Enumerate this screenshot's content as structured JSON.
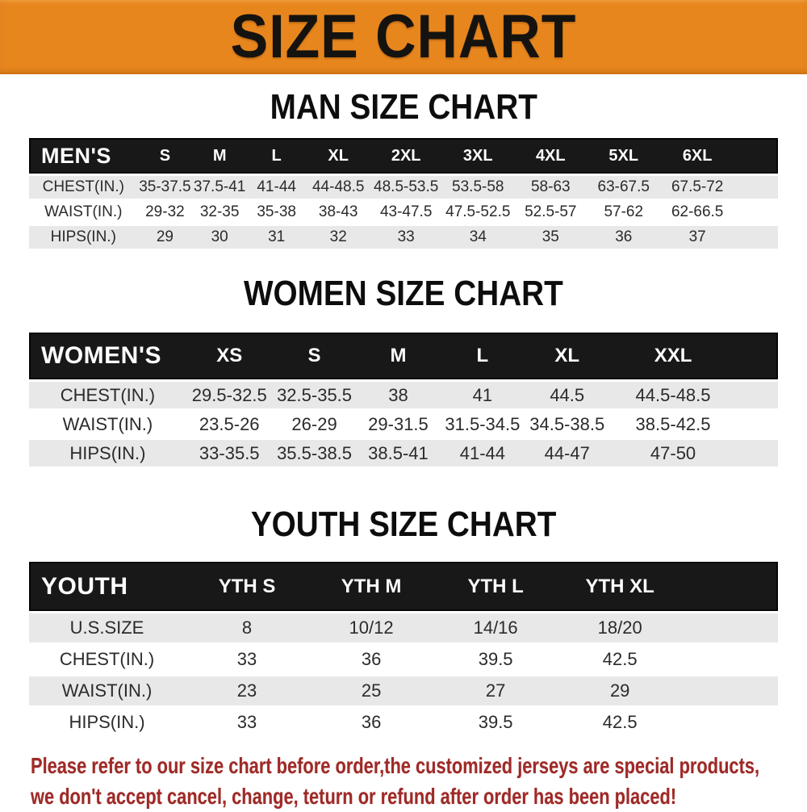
{
  "banner": {
    "title": "SIZE CHART"
  },
  "chart_data": [
    {
      "type": "table",
      "title": "MAN SIZE CHART",
      "header_label": "MEN'S",
      "columns": [
        "S",
        "M",
        "L",
        "XL",
        "2XL",
        "3XL",
        "4XL",
        "5XL",
        "6XL"
      ],
      "rows": [
        {
          "label": "CHEST(IN.)",
          "values": [
            "35-37.5",
            "37.5-41",
            "41-44",
            "44-48.5",
            "48.5-53.5",
            "53.5-58",
            "58-63",
            "63-67.5",
            "67.5-72"
          ]
        },
        {
          "label": "WAIST(IN.)",
          "values": [
            "29-32",
            "32-35",
            "35-38",
            "38-43",
            "43-47.5",
            "47.5-52.5",
            "52.5-57",
            "57-62",
            "62-66.5"
          ]
        },
        {
          "label": "HIPS(IN.)",
          "values": [
            "29",
            "30",
            "31",
            "32",
            "33",
            "34",
            "35",
            "36",
            "37"
          ]
        }
      ]
    },
    {
      "type": "table",
      "title": "WOMEN SIZE CHART",
      "header_label": "WOMEN'S",
      "columns": [
        "XS",
        "S",
        "M",
        "L",
        "XL",
        "XXL"
      ],
      "rows": [
        {
          "label": "CHEST(IN.)",
          "values": [
            "29.5-32.5",
            "32.5-35.5",
            "38",
            "41",
            "44.5",
            "44.5-48.5"
          ]
        },
        {
          "label": "WAIST(IN.)",
          "values": [
            "23.5-26",
            "26-29",
            "29-31.5",
            "31.5-34.5",
            "34.5-38.5",
            "38.5-42.5"
          ]
        },
        {
          "label": "HIPS(IN.)",
          "values": [
            "33-35.5",
            "35.5-38.5",
            "38.5-41",
            "41-44",
            "44-47",
            "47-50"
          ]
        }
      ]
    },
    {
      "type": "table",
      "title": "YOUTH SIZE CHART",
      "header_label": "YOUTH",
      "columns": [
        "YTH S",
        "YTH M",
        "YTH L",
        "YTH XL"
      ],
      "rows": [
        {
          "label": "U.S.SIZE",
          "values": [
            "8",
            "10/12",
            "14/16",
            "18/20"
          ]
        },
        {
          "label": "CHEST(IN.)",
          "values": [
            "33",
            "36",
            "39.5",
            "42.5"
          ]
        },
        {
          "label": "WAIST(IN.)",
          "values": [
            "23",
            "25",
            "27",
            "29"
          ]
        },
        {
          "label": "HIPS(IN.)",
          "values": [
            "33",
            "36",
            "39.5",
            "42.5"
          ]
        }
      ]
    }
  ],
  "footer": {
    "lines": [
      "Please refer to our size chart before order,the customized jerseys are special products,",
      "we don't accept cancel, change, teturn or refund after order has been placed!"
    ]
  },
  "colors": {
    "banner_bg": "#e8861e",
    "header_bg": "#181818",
    "row_alt_bg": "#e8e8e8",
    "footer_color": "#9e2a27"
  }
}
